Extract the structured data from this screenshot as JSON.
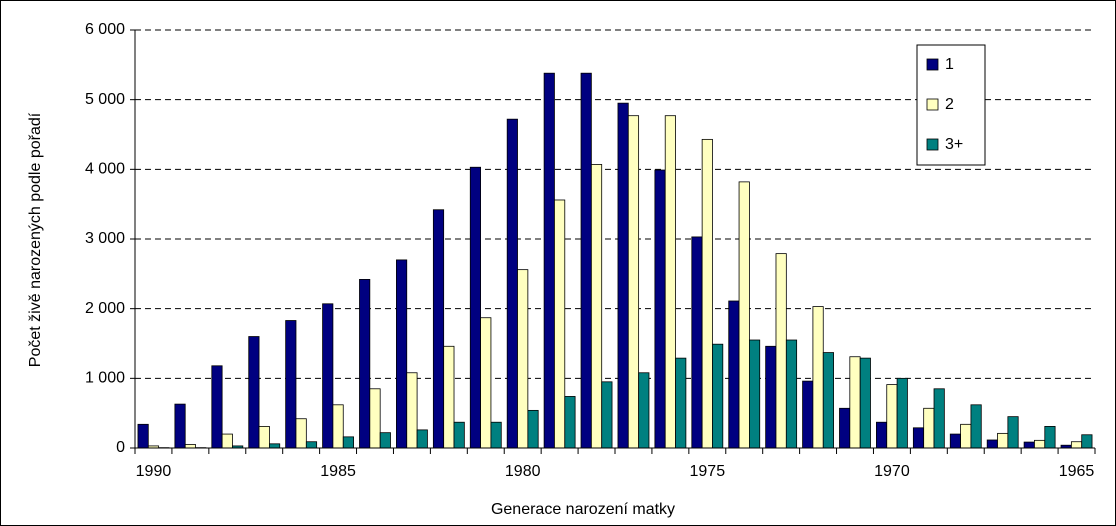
{
  "chart_data": {
    "type": "bar",
    "x_label": "Generace narození matky",
    "y_label": "Počet živě narozených podle pořadí",
    "categories": [
      "1990",
      null,
      null,
      null,
      null,
      "1985",
      null,
      null,
      null,
      null,
      "1980",
      null,
      null,
      null,
      null,
      "1975",
      null,
      null,
      null,
      null,
      "1970",
      null,
      null,
      null,
      null,
      "1965"
    ],
    "series": [
      {
        "name": "1",
        "color": "#000080",
        "values": [
          340,
          630,
          1180,
          1600,
          1830,
          2070,
          2420,
          2700,
          3420,
          4030,
          4720,
          5380,
          5380,
          4950,
          3990,
          3030,
          2110,
          1460,
          960,
          570,
          370,
          290,
          200,
          115,
          85,
          40
        ]
      },
      {
        "name": "2",
        "color": "#ffffc0",
        "values": [
          30,
          50,
          200,
          310,
          420,
          620,
          850,
          1080,
          1460,
          1870,
          2560,
          3560,
          4070,
          4770,
          4770,
          4430,
          3820,
          2790,
          2030,
          1310,
          910,
          570,
          340,
          210,
          110,
          90
        ]
      },
      {
        "name": "3+",
        "color": "#008080",
        "values": [
          5,
          5,
          30,
          60,
          90,
          160,
          220,
          260,
          370,
          370,
          540,
          740,
          950,
          1080,
          1290,
          1490,
          1550,
          1550,
          1370,
          1290,
          1000,
          850,
          620,
          450,
          310,
          190
        ]
      }
    ],
    "ylim": [
      0,
      6000
    ],
    "yticks": [
      0,
      {
        "value": 1000,
        "label": "1 000"
      },
      {
        "value": 2000,
        "label": "2 000"
      },
      {
        "value": 3000,
        "label": "3 000"
      },
      {
        "value": 4000,
        "label": "4 000"
      },
      {
        "value": 5000,
        "label": "5 000"
      },
      {
        "value": 6000,
        "label": "6 000"
      }
    ],
    "grid": true,
    "legend": "top-right"
  }
}
